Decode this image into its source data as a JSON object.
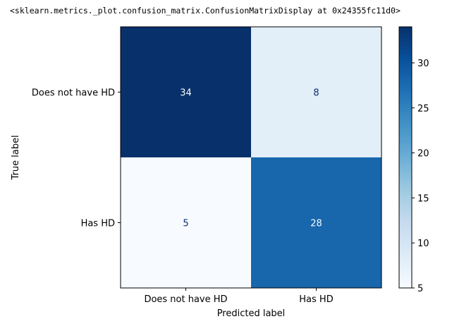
{
  "output_repr": "<sklearn.metrics._plot.confusion_matrix.ConfusionMatrixDisplay at 0x24355fc11d0>",
  "chart_data": {
    "type": "heatmap",
    "title": "",
    "xlabel": "Predicted label",
    "ylabel": "True label",
    "x_categories": [
      "Does not have HD",
      "Has HD"
    ],
    "y_categories": [
      "Does not have HD",
      "Has HD"
    ],
    "matrix": [
      [
        34,
        8
      ],
      [
        5,
        28
      ]
    ],
    "colormap": "Blues",
    "colorbar": {
      "min": 5,
      "max": 34,
      "ticks": [
        5,
        10,
        15,
        20,
        25,
        30
      ]
    },
    "grid": false,
    "legend": "colorbar-right"
  }
}
